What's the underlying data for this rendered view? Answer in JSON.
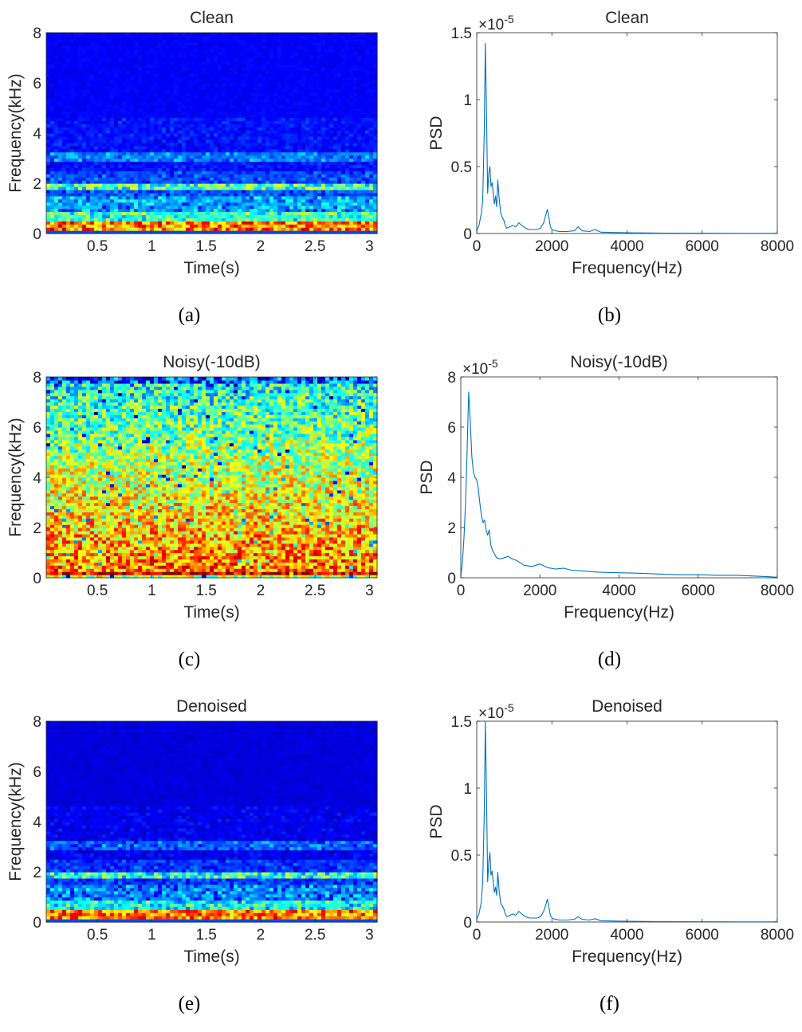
{
  "chart_data": [
    {
      "id": "a",
      "type": "heatmap",
      "variant": "clean",
      "title": "Clean",
      "caption": "(a)",
      "xlabel": "Time(s)",
      "ylabel": "Frequency(kHz)",
      "xlim": [
        0.03,
        3.07
      ],
      "ylim": [
        0,
        8
      ],
      "xticks": [
        0.5,
        1,
        1.5,
        2,
        2.5,
        3
      ],
      "xtick_labels": [
        "0.5",
        "1",
        "1.5",
        "2",
        "2.5",
        "3"
      ],
      "yticks": [
        0,
        2,
        4,
        6,
        8
      ],
      "ytick_labels": [
        "0",
        "2",
        "4",
        "6",
        "8"
      ],
      "colormap": "jet"
    },
    {
      "id": "b",
      "type": "line",
      "variant": "clean",
      "title": "Clean",
      "caption": "(b)",
      "xlabel": "Frequency(Hz)",
      "ylabel": "PSD",
      "exponent_label": "×10",
      "exponent_power": "-5",
      "xlim": [
        0,
        8000
      ],
      "ylim": [
        0,
        1.5
      ],
      "xticks": [
        0,
        2000,
        4000,
        6000,
        8000
      ],
      "xtick_labels": [
        "0",
        "2000",
        "4000",
        "6000",
        "8000"
      ],
      "yticks": [
        0,
        0.5,
        1,
        1.5
      ],
      "ytick_labels": [
        "0",
        "0.5",
        "1",
        "1.5"
      ],
      "line_color": "#0072bd",
      "x": [
        0,
        60,
        120,
        160,
        200,
        230,
        260,
        290,
        320,
        350,
        380,
        410,
        440,
        470,
        500,
        530,
        560,
        600,
        640,
        680,
        720,
        760,
        800,
        880,
        960,
        1040,
        1120,
        1200,
        1300,
        1400,
        1500,
        1600,
        1700,
        1780,
        1840,
        1880,
        1920,
        1960,
        2000,
        2100,
        2200,
        2400,
        2600,
        2700,
        2800,
        3000,
        3150,
        3300,
        3600,
        4000,
        4500,
        5000,
        6000,
        7000,
        8000
      ],
      "y": [
        0.02,
        0.06,
        0.15,
        0.25,
        0.75,
        1.42,
        0.9,
        0.3,
        0.45,
        0.5,
        0.35,
        0.38,
        0.3,
        0.22,
        0.28,
        0.2,
        0.4,
        0.25,
        0.15,
        0.12,
        0.1,
        0.06,
        0.04,
        0.05,
        0.06,
        0.05,
        0.08,
        0.06,
        0.04,
        0.03,
        0.03,
        0.03,
        0.04,
        0.08,
        0.14,
        0.18,
        0.12,
        0.05,
        0.03,
        0.02,
        0.015,
        0.015,
        0.02,
        0.05,
        0.02,
        0.015,
        0.03,
        0.01,
        0.008,
        0.006,
        0.004,
        0.003,
        0.002,
        0.001,
        0.001
      ]
    },
    {
      "id": "c",
      "type": "heatmap",
      "variant": "noisy",
      "title": "Noisy(-10dB)",
      "caption": "(c)",
      "xlabel": "Time(s)",
      "ylabel": "Frequency(kHz)",
      "xlim": [
        0.03,
        3.07
      ],
      "ylim": [
        0,
        8
      ],
      "xticks": [
        0.5,
        1,
        1.5,
        2,
        2.5,
        3
      ],
      "xtick_labels": [
        "0.5",
        "1",
        "1.5",
        "2",
        "2.5",
        "3"
      ],
      "yticks": [
        0,
        2,
        4,
        6,
        8
      ],
      "ytick_labels": [
        "0",
        "2",
        "4",
        "6",
        "8"
      ],
      "colormap": "jet"
    },
    {
      "id": "d",
      "type": "line",
      "variant": "noisy",
      "title": "Noisy(-10dB)",
      "caption": "(d)",
      "xlabel": "Frequency(Hz)",
      "ylabel": "PSD",
      "exponent_label": "×10",
      "exponent_power": "-5",
      "xlim": [
        0,
        8000
      ],
      "ylim": [
        0,
        8
      ],
      "xticks": [
        0,
        2000,
        4000,
        6000,
        8000
      ],
      "xtick_labels": [
        "0",
        "2000",
        "4000",
        "6000",
        "8000"
      ],
      "yticks": [
        0,
        2,
        4,
        6,
        8
      ],
      "ytick_labels": [
        "0",
        "2",
        "4",
        "6",
        "8"
      ],
      "line_color": "#0072bd",
      "x": [
        0,
        40,
        80,
        120,
        160,
        200,
        240,
        280,
        320,
        360,
        400,
        440,
        480,
        520,
        560,
        600,
        640,
        680,
        720,
        760,
        800,
        900,
        1000,
        1100,
        1200,
        1300,
        1400,
        1600,
        1800,
        2000,
        2200,
        2400,
        2600,
        2800,
        3000,
        3500,
        4000,
        4500,
        5000,
        5500,
        6000,
        6500,
        7000,
        7500,
        7800,
        8000
      ],
      "y": [
        0.05,
        0.6,
        1.6,
        3.0,
        5.0,
        7.4,
        6.2,
        4.8,
        4.2,
        4.0,
        3.9,
        3.6,
        3.0,
        2.5,
        2.2,
        2.3,
        1.9,
        1.7,
        1.9,
        1.3,
        1.1,
        0.8,
        0.75,
        0.8,
        0.85,
        0.75,
        0.7,
        0.5,
        0.45,
        0.55,
        0.4,
        0.35,
        0.38,
        0.3,
        0.28,
        0.22,
        0.2,
        0.18,
        0.15,
        0.12,
        0.12,
        0.1,
        0.1,
        0.06,
        0.04,
        0.02
      ]
    },
    {
      "id": "e",
      "type": "heatmap",
      "variant": "denoised",
      "title": "Denoised",
      "caption": "(e)",
      "xlabel": "Time(s)",
      "ylabel": "Frequency(kHz)",
      "xlim": [
        0.03,
        3.07
      ],
      "ylim": [
        0,
        8
      ],
      "xticks": [
        0.5,
        1,
        1.5,
        2,
        2.5,
        3
      ],
      "xtick_labels": [
        "0.5",
        "1",
        "1.5",
        "2",
        "2.5",
        "3"
      ],
      "yticks": [
        0,
        2,
        4,
        6,
        8
      ],
      "ytick_labels": [
        "0",
        "2",
        "4",
        "6",
        "8"
      ],
      "colormap": "jet"
    },
    {
      "id": "f",
      "type": "line",
      "variant": "denoised",
      "title": "Denoised",
      "caption": "(f)",
      "xlabel": "Frequency(Hz)",
      "ylabel": "PSD",
      "exponent_label": "×10",
      "exponent_power": "-5",
      "xlim": [
        0,
        8000
      ],
      "ylim": [
        0,
        1.5
      ],
      "xticks": [
        0,
        2000,
        4000,
        6000,
        8000
      ],
      "xtick_labels": [
        "0",
        "2000",
        "4000",
        "6000",
        "8000"
      ],
      "yticks": [
        0,
        0.5,
        1,
        1.5
      ],
      "ytick_labels": [
        "0",
        "0.5",
        "1",
        "1.5"
      ],
      "line_color": "#0072bd",
      "x": [
        0,
        60,
        120,
        160,
        200,
        230,
        260,
        290,
        320,
        350,
        380,
        410,
        440,
        470,
        500,
        530,
        560,
        600,
        640,
        680,
        720,
        760,
        800,
        880,
        960,
        1040,
        1120,
        1200,
        1300,
        1400,
        1500,
        1600,
        1700,
        1780,
        1840,
        1880,
        1920,
        1960,
        2000,
        2100,
        2200,
        2400,
        2600,
        2700,
        2800,
        3000,
        3150,
        3300,
        3600,
        4000,
        4500,
        5000,
        6000,
        7000,
        8000
      ],
      "y": [
        0.02,
        0.06,
        0.15,
        0.3,
        0.8,
        1.5,
        0.95,
        0.3,
        0.45,
        0.52,
        0.35,
        0.38,
        0.3,
        0.22,
        0.26,
        0.2,
        0.37,
        0.22,
        0.14,
        0.12,
        0.1,
        0.06,
        0.04,
        0.05,
        0.06,
        0.05,
        0.08,
        0.06,
        0.04,
        0.03,
        0.03,
        0.03,
        0.04,
        0.08,
        0.13,
        0.17,
        0.11,
        0.05,
        0.03,
        0.02,
        0.015,
        0.015,
        0.02,
        0.04,
        0.02,
        0.015,
        0.025,
        0.01,
        0.008,
        0.006,
        0.004,
        0.003,
        0.002,
        0.001,
        0.001
      ]
    }
  ]
}
